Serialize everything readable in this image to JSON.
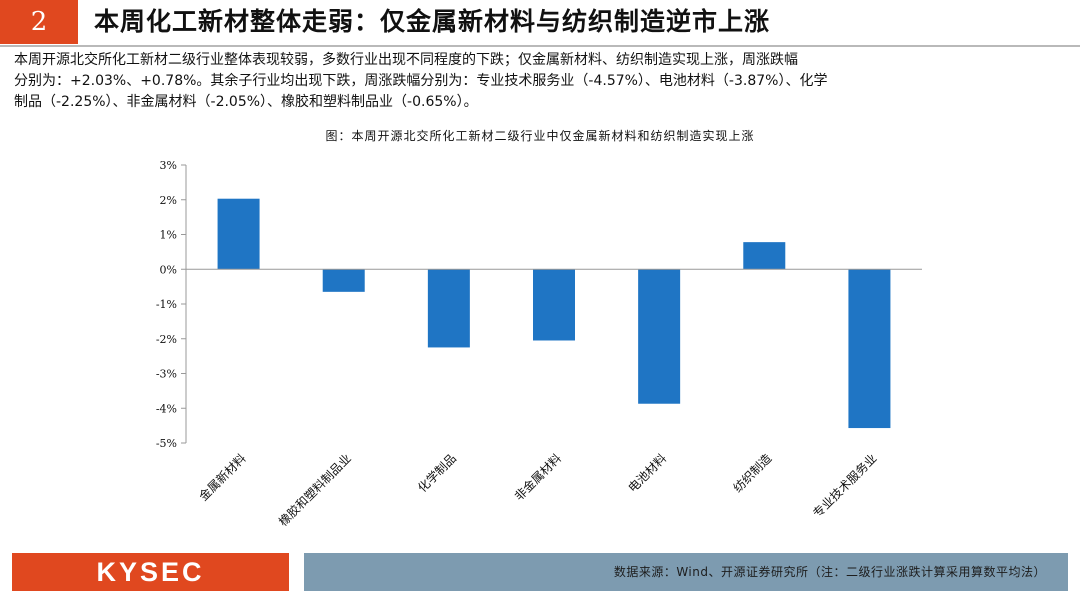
{
  "header": {
    "number": "2",
    "title": "本周化工新材整体走弱：仅金属新材料与纺织制造逆市上涨"
  },
  "summary": {
    "line1": "本周开源北交所化工新材二级行业整体表现较弱，多数行业出现不同程度的下跌；仅金属新材料、纺织制造实现上涨，周涨跌幅",
    "line2": "分别为：+2.03%、+0.78%。其余子行业均出现下跌，周涨跌幅分别为：专业技术服务业（-4.57%）、电池材料（-3.87%）、化学",
    "line3": "制品（-2.25%）、非金属材料（-2.05%）、橡胶和塑料制品业（-0.65%）。"
  },
  "chart_data": {
    "type": "bar",
    "title": "图：本周开源北交所化工新材二级行业中仅金属新材料和纺织制造实现上涨",
    "categories": [
      "金属新材料",
      "橡胶和塑料制品业",
      "化学制品",
      "非金属材料",
      "电池材料",
      "纺织制造",
      "专业技术服务业"
    ],
    "values": [
      2.03,
      -0.65,
      -2.25,
      -2.05,
      -3.87,
      0.78,
      -4.57
    ],
    "ylim": [
      -5,
      3
    ],
    "yticks": [
      3,
      2,
      1,
      0,
      -1,
      -2,
      -3,
      -4,
      -5
    ],
    "ytick_labels": [
      "3%",
      "2%",
      "1%",
      "0%",
      "-1%",
      "-2%",
      "-3%",
      "-4%",
      "-5%"
    ],
    "bar_color": "#1f75c4",
    "xlabel": "",
    "ylabel": "",
    "grid": false,
    "legend": false
  },
  "footer": {
    "logo": "KYSEC",
    "source": "数据来源：Wind、开源证券研究所（注：二级行业涨跌计算采用算数平均法）"
  },
  "colors": {
    "accent": "#e0481f",
    "footer_bar": "#7d9bb0"
  }
}
